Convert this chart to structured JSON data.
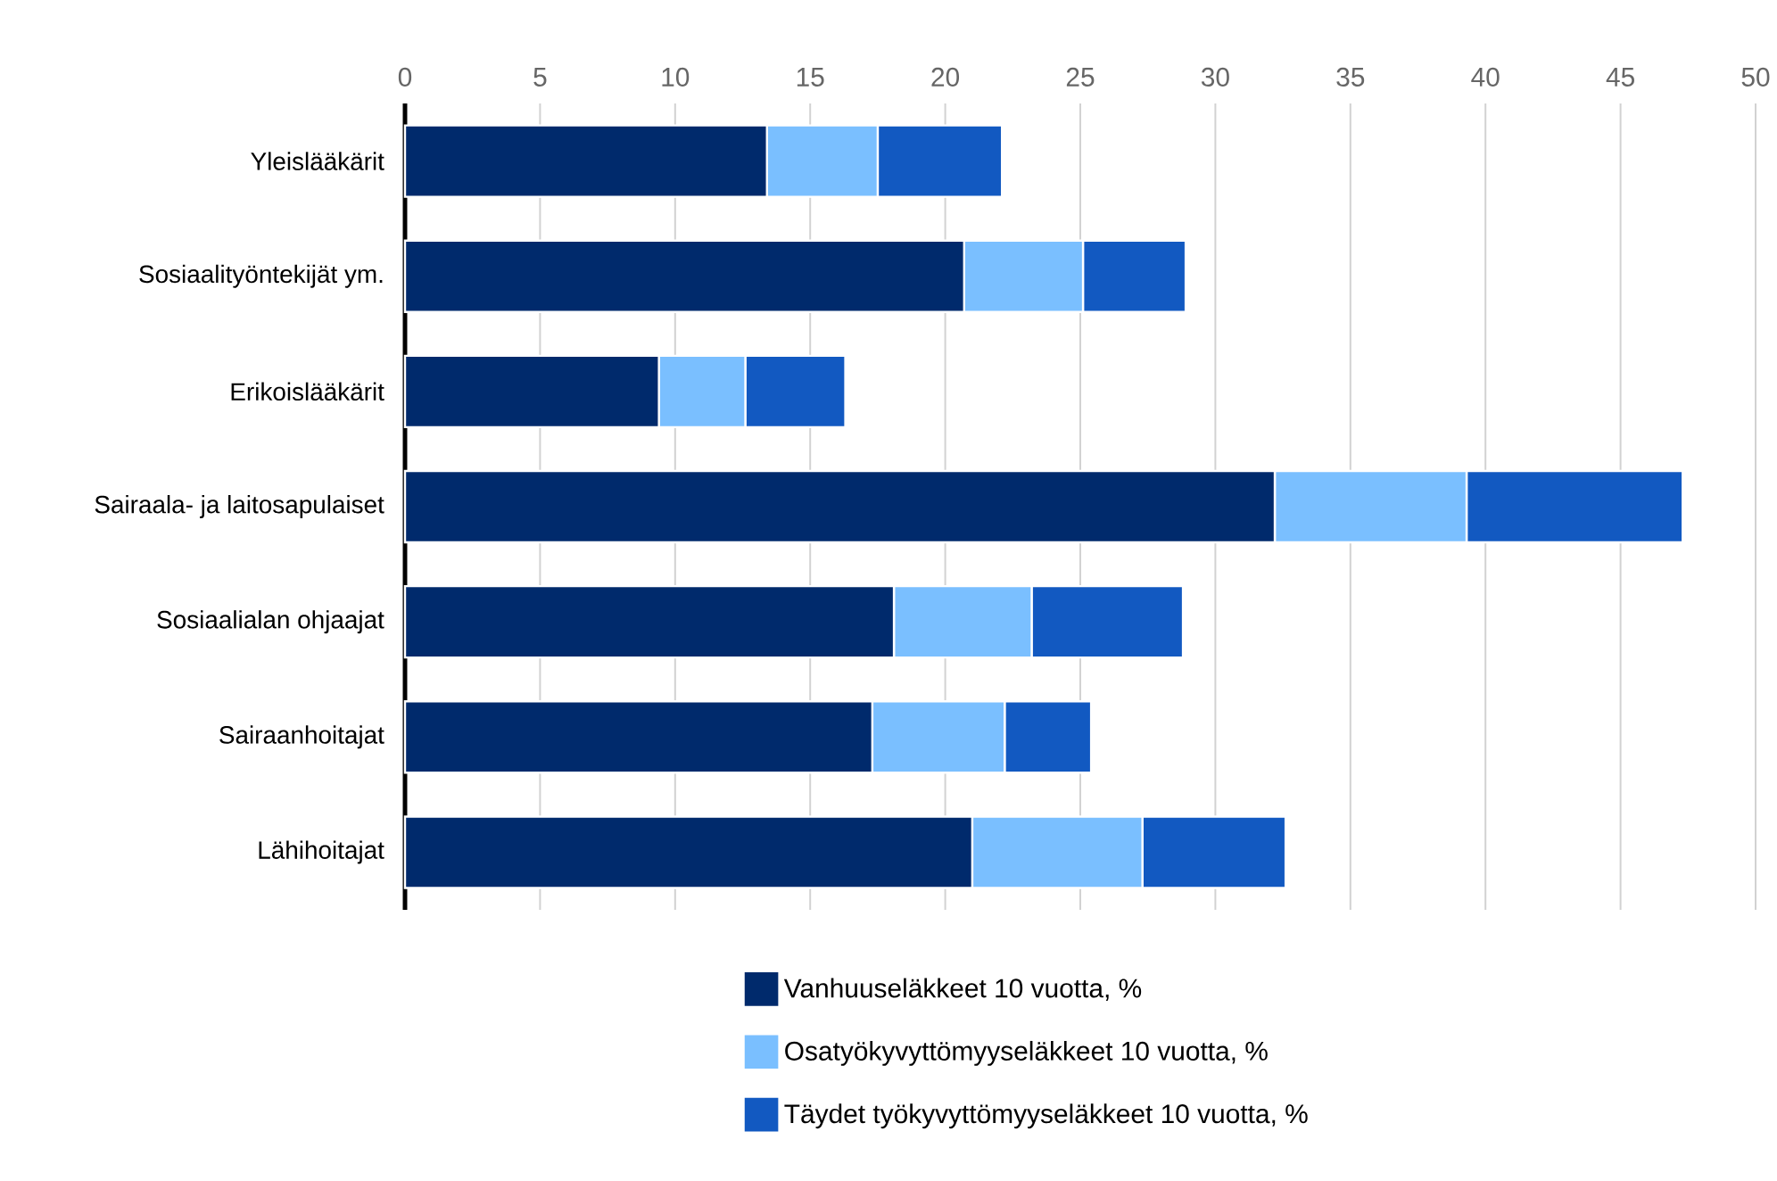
{
  "chart_data": {
    "type": "bar",
    "orientation": "horizontal",
    "stacked": true,
    "categories": [
      "Yleislääkärit",
      "Sosiaalityöntekijät ym.",
      "Erikoislääkärit",
      "Sairaala- ja laitosapulaiset",
      "Sosiaalialan ohjaajat",
      "Sairaanhoitajat",
      "Lähihoitajat"
    ],
    "series": [
      {
        "name": "Vanhuuseläkkeet 10 vuotta, %",
        "color": "#002a6c",
        "values": [
          13.4,
          20.7,
          9.4,
          32.2,
          18.1,
          17.3,
          21.0
        ]
      },
      {
        "name": "Osatyökyvyttömyyseläkkeet 10 vuotta, %",
        "color": "#7abfff",
        "values": [
          4.1,
          4.4,
          3.2,
          7.1,
          5.1,
          4.9,
          6.3
        ]
      },
      {
        "name": "Täydet työkyvyttömyyseläkkeet 10 vuotta, %",
        "color": "#1259c1",
        "values": [
          4.6,
          3.8,
          3.7,
          8.0,
          5.6,
          3.2,
          5.3
        ]
      }
    ],
    "xlim": [
      0,
      50
    ],
    "xticks": [
      0,
      5,
      10,
      15,
      20,
      25,
      30,
      35,
      40,
      45,
      50
    ],
    "grid": "x",
    "legend": "bottom"
  }
}
